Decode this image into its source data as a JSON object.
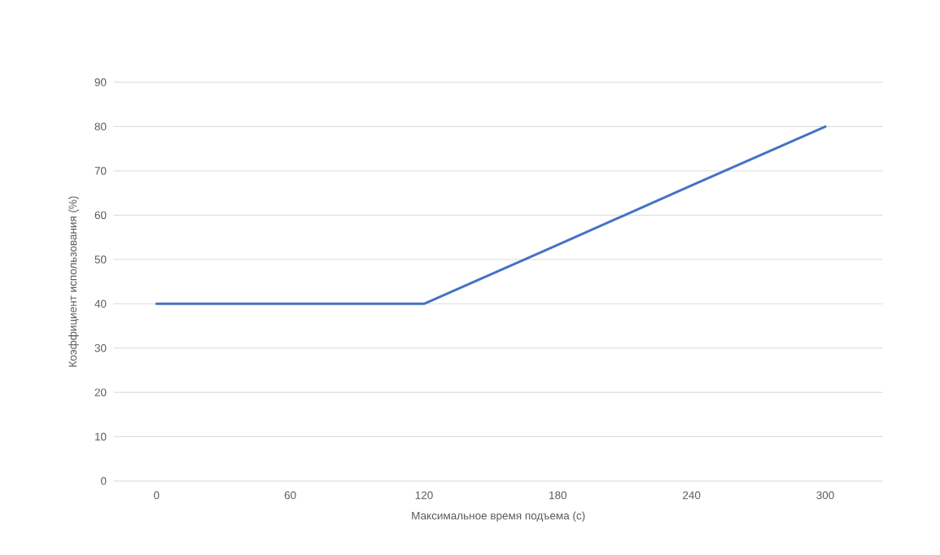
{
  "chart_data": {
    "type": "line",
    "xlabel": "Максимальное время подъема (с)",
    "ylabel": "Коэффициент использования (%)",
    "categories": [
      "0",
      "60",
      "120",
      "180",
      "240",
      "300"
    ],
    "series": [
      {
        "color": "#4472c4",
        "values": [
          40,
          40,
          40,
          53.3,
          66.7,
          80
        ]
      }
    ],
    "ylim": [
      0,
      90
    ],
    "yticks": [
      0,
      10,
      20,
      30,
      40,
      50,
      60,
      70,
      80,
      90
    ],
    "grid": "y",
    "marker": "none",
    "line_style": "solid"
  }
}
